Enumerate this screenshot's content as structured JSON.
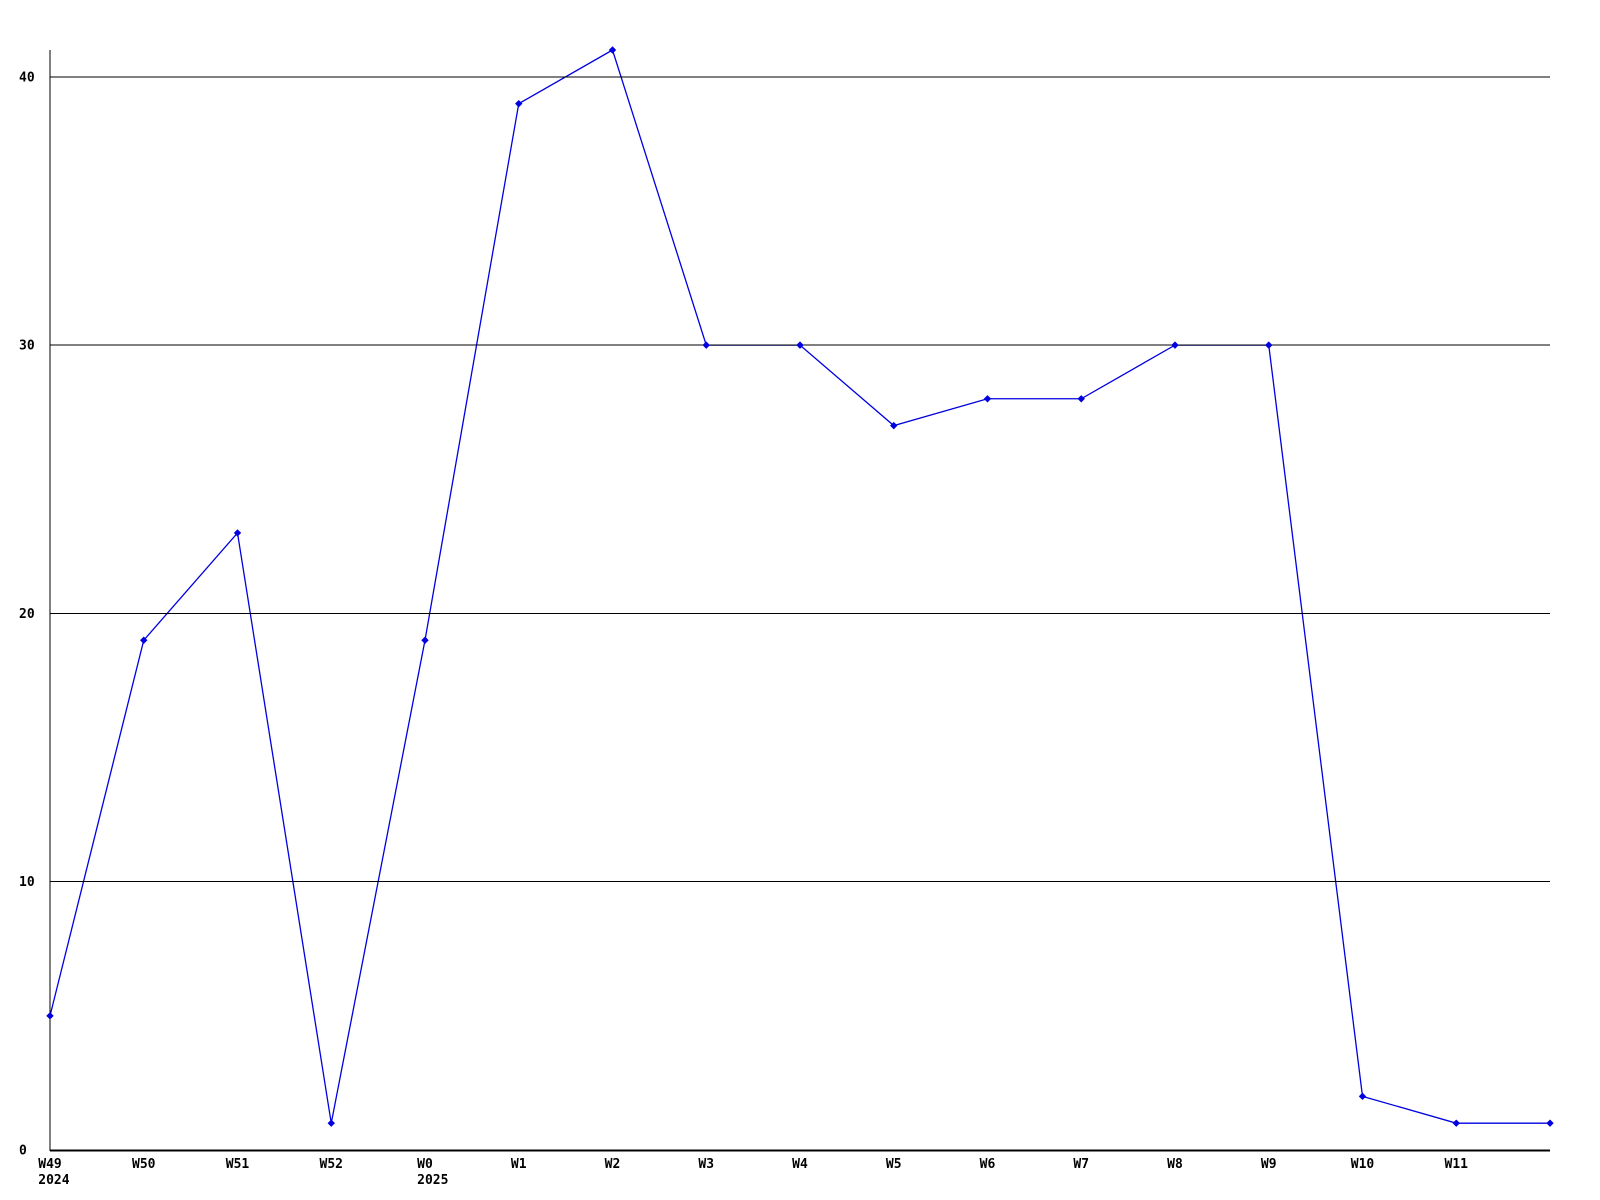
{
  "chart_data": {
    "type": "line",
    "title": "",
    "xlabel": "",
    "ylabel": "",
    "x_tick_labels": [
      "W49",
      "W50",
      "W51",
      "W52",
      "W0",
      "W1",
      "W2",
      "W3",
      "W4",
      "W5",
      "W6",
      "W7",
      "W8",
      "W9",
      "W10",
      "W11"
    ],
    "x_year_labels": [
      {
        "index": 0,
        "label": "2024"
      },
      {
        "index": 4,
        "label": "2025"
      }
    ],
    "values": [
      5,
      19,
      23,
      1,
      19,
      39,
      41,
      30,
      30,
      27,
      28,
      28,
      30,
      30,
      2,
      1,
      1
    ],
    "last_point_unlabeled": true,
    "y_ticks": [
      0,
      10,
      20,
      30,
      40
    ],
    "y_tick_labels": [
      "0",
      "10",
      "20",
      "30",
      "40"
    ],
    "ylim": [
      0,
      41
    ],
    "grid": "horizontal",
    "legend": "none",
    "line_color": "#0000e0",
    "marker": "diamond",
    "axis_color": "#000000",
    "background": "#ffffff"
  }
}
